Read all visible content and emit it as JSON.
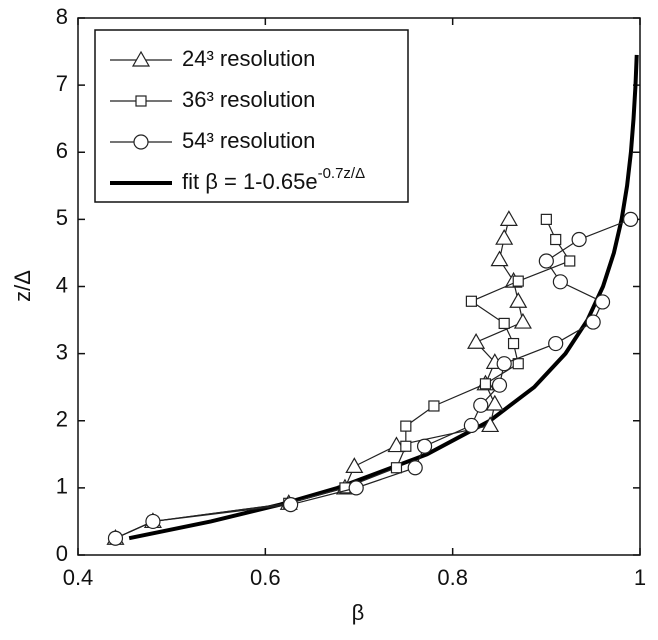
{
  "chart_data": {
    "type": "line",
    "xlabel": "β",
    "ylabel": "z/Δ",
    "xlim": [
      0.4,
      1
    ],
    "ylim": [
      0,
      8
    ],
    "xticks": [
      0.4,
      0.6,
      0.8,
      1
    ],
    "yticks": [
      0,
      1,
      2,
      3,
      4,
      5,
      6,
      7,
      8
    ],
    "legend": "upper left",
    "series": [
      {
        "name": "24³ resolution",
        "color": "#222222",
        "marker": "triangle",
        "x": [
          0.44,
          0.48,
          0.625,
          0.685,
          0.695,
          0.74,
          0.84,
          0.845,
          0.835,
          0.845,
          0.825,
          0.875,
          0.87,
          0.865,
          0.85,
          0.855,
          0.86
        ],
        "y": [
          0.25,
          0.5,
          0.77,
          1.0,
          1.32,
          1.63,
          1.93,
          2.25,
          2.55,
          2.87,
          3.17,
          3.47,
          3.78,
          4.08,
          4.4,
          4.72,
          5.0
        ]
      },
      {
        "name": "36³ resolution",
        "color": "#222222",
        "marker": "square",
        "x": [
          0.44,
          0.48,
          0.625,
          0.685,
          0.74,
          0.75,
          0.75,
          0.78,
          0.835,
          0.87,
          0.865,
          0.855,
          0.82,
          0.87,
          0.925,
          0.91,
          0.9
        ],
        "y": [
          0.25,
          0.5,
          0.77,
          1.0,
          1.3,
          1.62,
          1.92,
          2.22,
          2.55,
          2.85,
          3.15,
          3.45,
          3.78,
          4.08,
          4.38,
          4.7,
          5.0
        ]
      },
      {
        "name": "54³ resolution",
        "color": "#222222",
        "marker": "circle",
        "x": [
          0.44,
          0.48,
          0.627,
          0.697,
          0.76,
          0.77,
          0.82,
          0.83,
          0.85,
          0.855,
          0.91,
          0.95,
          0.96,
          0.915,
          0.9,
          0.935,
          0.99
        ],
        "y": [
          0.25,
          0.5,
          0.75,
          1.0,
          1.3,
          1.62,
          1.93,
          2.23,
          2.53,
          2.85,
          3.15,
          3.47,
          3.77,
          4.07,
          4.38,
          4.7,
          5.0
        ]
      },
      {
        "name": "fit β  = 1-0.65e",
        "name_superscript": "-0.7z/Δ",
        "color": "#000000",
        "marker": "none",
        "x": [
          0.4546,
          0.5419,
          0.6155,
          0.6772,
          0.7726,
          0.8397,
          0.887,
          0.9204,
          0.9439,
          0.9605,
          0.9721,
          0.9804,
          0.9862,
          0.9903,
          0.9931,
          0.9952,
          0.9965
        ],
        "y": [
          0.25,
          0.5,
          0.75,
          1,
          1.5,
          2,
          2.5,
          3,
          3.5,
          4,
          4.5,
          5,
          5.5,
          6,
          6.5,
          7,
          7.45
        ]
      }
    ]
  }
}
